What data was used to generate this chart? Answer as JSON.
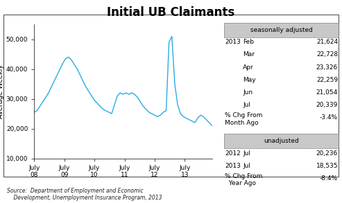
{
  "title": "Initial UB Claimants",
  "ylabel": "Average Weekly",
  "ylim": [
    10000,
    55000
  ],
  "yticks": [
    10000,
    20000,
    30000,
    40000,
    50000
  ],
  "ytick_labels": [
    "10,000",
    "20,000",
    "30,000",
    "40,000",
    "50,000"
  ],
  "xtick_labels": [
    "July\n08",
    "July\n09",
    "July\n10",
    "July\n11",
    "July\n12",
    "July\n13"
  ],
  "xtick_positions": [
    0,
    10.5,
    21,
    31.5,
    42,
    52.5
  ],
  "line_color": "#29ABE2",
  "source_text": "Source:  Department of Employment and Economic\n    Development, Unemployment Insurance Program, 2013",
  "sa_label": "seasonally adjusted",
  "sa_data": [
    [
      "2013",
      "Feb",
      "21,624"
    ],
    [
      "",
      "Mar",
      "22,728"
    ],
    [
      "",
      "Apr",
      "23,326"
    ],
    [
      "",
      "May",
      "22,259"
    ],
    [
      "",
      "Jun",
      "21,054"
    ],
    [
      "",
      "Jul",
      "20,339"
    ]
  ],
  "sa_pct_label": "% Chg From\nMonth Ago",
  "sa_pct_value": "-3.4%",
  "ua_label": "unadjusted",
  "ua_data": [
    [
      "2012",
      "Jul",
      "20,236"
    ],
    [
      "2013",
      "Jul",
      "18,535"
    ]
  ],
  "ua_pct_label": "% Chg From\n  Year Ago",
  "ua_pct_value": "-8.4%",
  "x_values": [
    0,
    1,
    2,
    3,
    4,
    5,
    6,
    7,
    8,
    9,
    10,
    11,
    12,
    13,
    14,
    15,
    16,
    17,
    18,
    19,
    20,
    21,
    22,
    23,
    24,
    25,
    26,
    27,
    28,
    29,
    30,
    31,
    32,
    33,
    34,
    35,
    36,
    37,
    38,
    39,
    40,
    41,
    42,
    43,
    44,
    45,
    46,
    47,
    48,
    49,
    50,
    51,
    52,
    53,
    54,
    55,
    56,
    57,
    58,
    59,
    60,
    61,
    62
  ],
  "y_values": [
    25500,
    26000,
    27500,
    29000,
    30500,
    32000,
    34000,
    36000,
    38000,
    40000,
    42000,
    43500,
    44000,
    43000,
    41500,
    40000,
    38000,
    36000,
    34000,
    32500,
    31000,
    29500,
    28500,
    27500,
    26500,
    26000,
    25500,
    25000,
    28000,
    31000,
    32000,
    31500,
    32000,
    31500,
    32000,
    31500,
    30500,
    29000,
    27500,
    26500,
    25500,
    25000,
    24500,
    24000,
    24500,
    25500,
    26000,
    49000,
    51000,
    35000,
    28000,
    25000,
    24000,
    23500,
    23000,
    22500,
    22000,
    23500,
    24500,
    24000,
    23000,
    22000,
    21000
  ]
}
